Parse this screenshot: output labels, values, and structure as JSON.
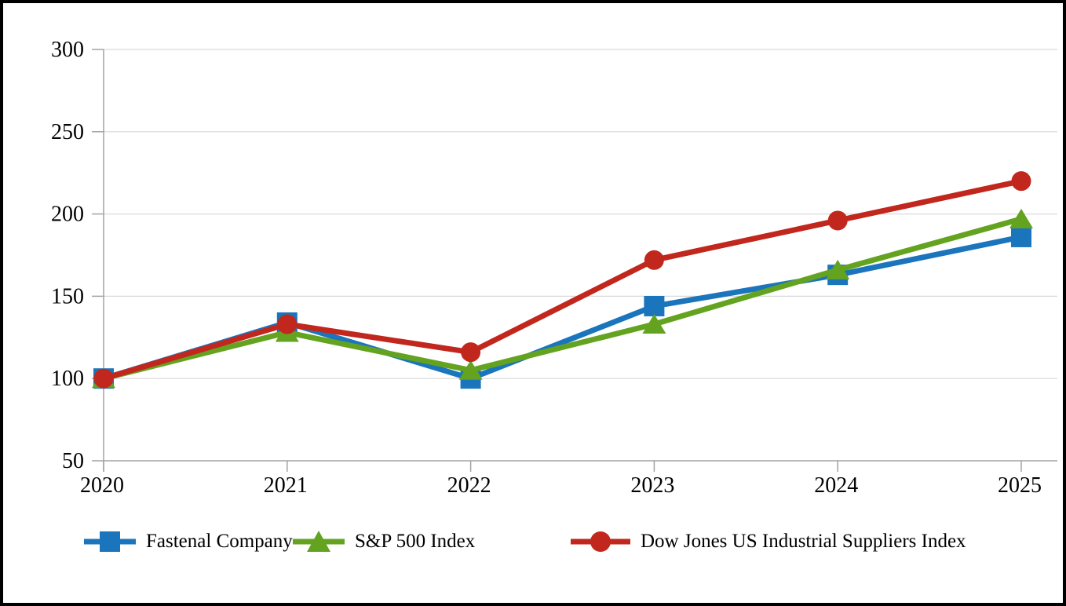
{
  "chart_data": {
    "type": "line",
    "x": [
      "2020",
      "2021",
      "2022",
      "2023",
      "2024",
      "2025"
    ],
    "series": [
      {
        "name": "Fastenal Company",
        "marker": "square",
        "color": "#1b75bc",
        "values": [
          100,
          134,
          100,
          144,
          163,
          186
        ]
      },
      {
        "name": "S&P 500 Index",
        "marker": "triangle",
        "color": "#63a320",
        "values": [
          100,
          128,
          105,
          133,
          166,
          197
        ]
      },
      {
        "name": "Dow Jones US Industrial Suppliers Index",
        "marker": "circle",
        "color": "#c1271d",
        "values": [
          100,
          133,
          116,
          172,
          196,
          220
        ]
      }
    ],
    "ylim": [
      50,
      300
    ],
    "yticks": [
      50,
      100,
      150,
      200,
      250,
      300
    ],
    "grid": true,
    "legend_position": "bottom",
    "axis_color": "#a3a3a3",
    "gridline_color": "#d9d9d9",
    "text_color": "#000000"
  },
  "frame": {
    "border_color": "#000000"
  }
}
